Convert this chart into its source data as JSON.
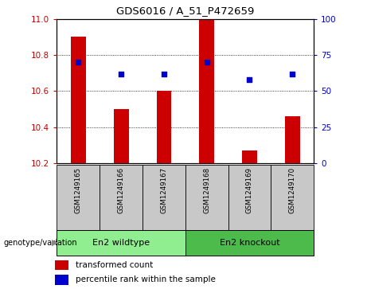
{
  "title": "GDS6016 / A_51_P472659",
  "samples": [
    "GSM1249165",
    "GSM1249166",
    "GSM1249167",
    "GSM1249168",
    "GSM1249169",
    "GSM1249170"
  ],
  "bar_values": [
    10.9,
    10.5,
    10.6,
    11.0,
    10.27,
    10.46
  ],
  "dot_values_pct": [
    70,
    62,
    62,
    70,
    58,
    62
  ],
  "ylim_left": [
    10.2,
    11.0
  ],
  "ylim_right": [
    0,
    100
  ],
  "yticks_left": [
    10.2,
    10.4,
    10.6,
    10.8,
    11.0
  ],
  "yticks_right": [
    0,
    25,
    50,
    75,
    100
  ],
  "bar_color": "#cc0000",
  "dot_color": "#0000cc",
  "bar_width": 0.35,
  "groups": [
    {
      "label": "En2 wildtype",
      "span": [
        0,
        3
      ],
      "color": "#90ee90"
    },
    {
      "label": "En2 knockout",
      "span": [
        3,
        6
      ],
      "color": "#4cbb4c"
    }
  ],
  "group_row_label": "genotype/variation",
  "legend_bar_label": "transformed count",
  "legend_dot_label": "percentile rank within the sample",
  "tick_label_color_left": "#cc0000",
  "tick_label_color_right": "#0000cc",
  "background_color": "#ffffff",
  "plot_bg_color": "#ffffff",
  "sample_box_color": "#c8c8c8"
}
